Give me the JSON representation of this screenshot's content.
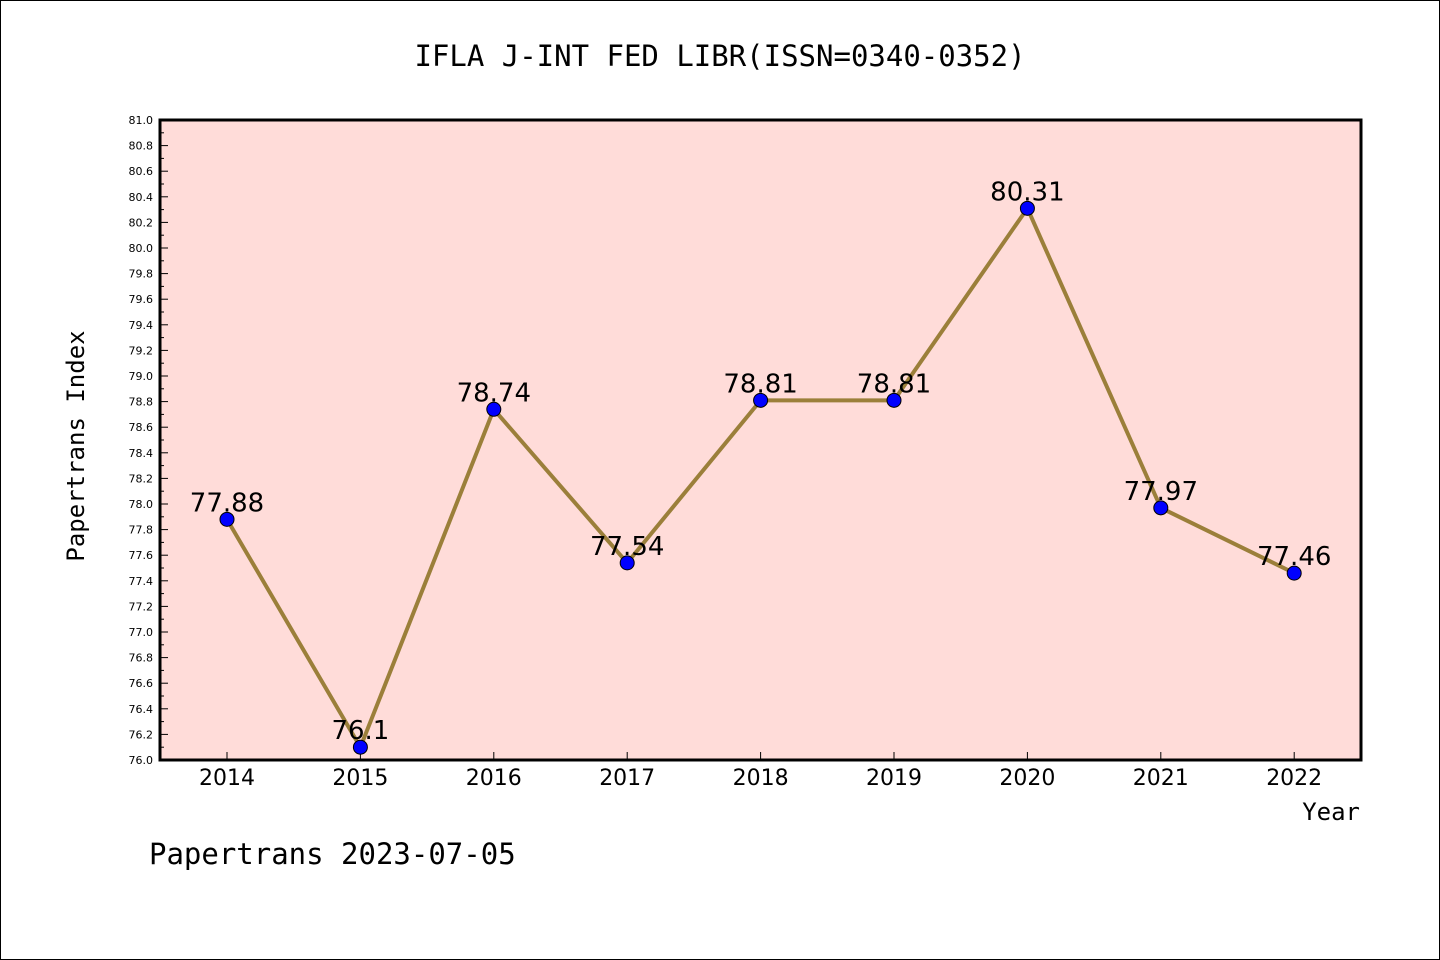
{
  "chart_data": {
    "type": "line",
    "title": "IFLA J-INT FED LIBR(ISSN=0340-0352)",
    "xlabel": "Year",
    "ylabel": "Papertrans Index",
    "footer": "Papertrans 2023-07-05",
    "categories": [
      "2014",
      "2015",
      "2016",
      "2017",
      "2018",
      "2019",
      "2020",
      "2021",
      "2022"
    ],
    "series": [
      {
        "values": [
          77.88,
          76.1,
          78.74,
          77.54,
          78.81,
          78.81,
          80.31,
          77.97,
          77.46
        ],
        "labels": [
          "77.88",
          "76.1",
          "78.74",
          "77.54",
          "78.81",
          "78.81",
          "80.31",
          "77.97",
          "77.46"
        ]
      }
    ],
    "ylim": [
      76.0,
      81.0
    ],
    "yticks": [
      "76.0",
      "76.2",
      "76.4",
      "76.6",
      "76.8",
      "77.0",
      "77.2",
      "77.4",
      "77.6",
      "77.8",
      "78.0",
      "78.2",
      "78.4",
      "78.6",
      "78.8",
      "79.0",
      "79.2",
      "79.4",
      "79.6",
      "79.8",
      "80.0",
      "80.2",
      "80.4",
      "80.6",
      "80.8",
      "81.0"
    ],
    "grid": false,
    "colors": {
      "plot_background": "#ffdcd9",
      "line": "#9b7f3a",
      "marker": "#0000ff"
    }
  }
}
